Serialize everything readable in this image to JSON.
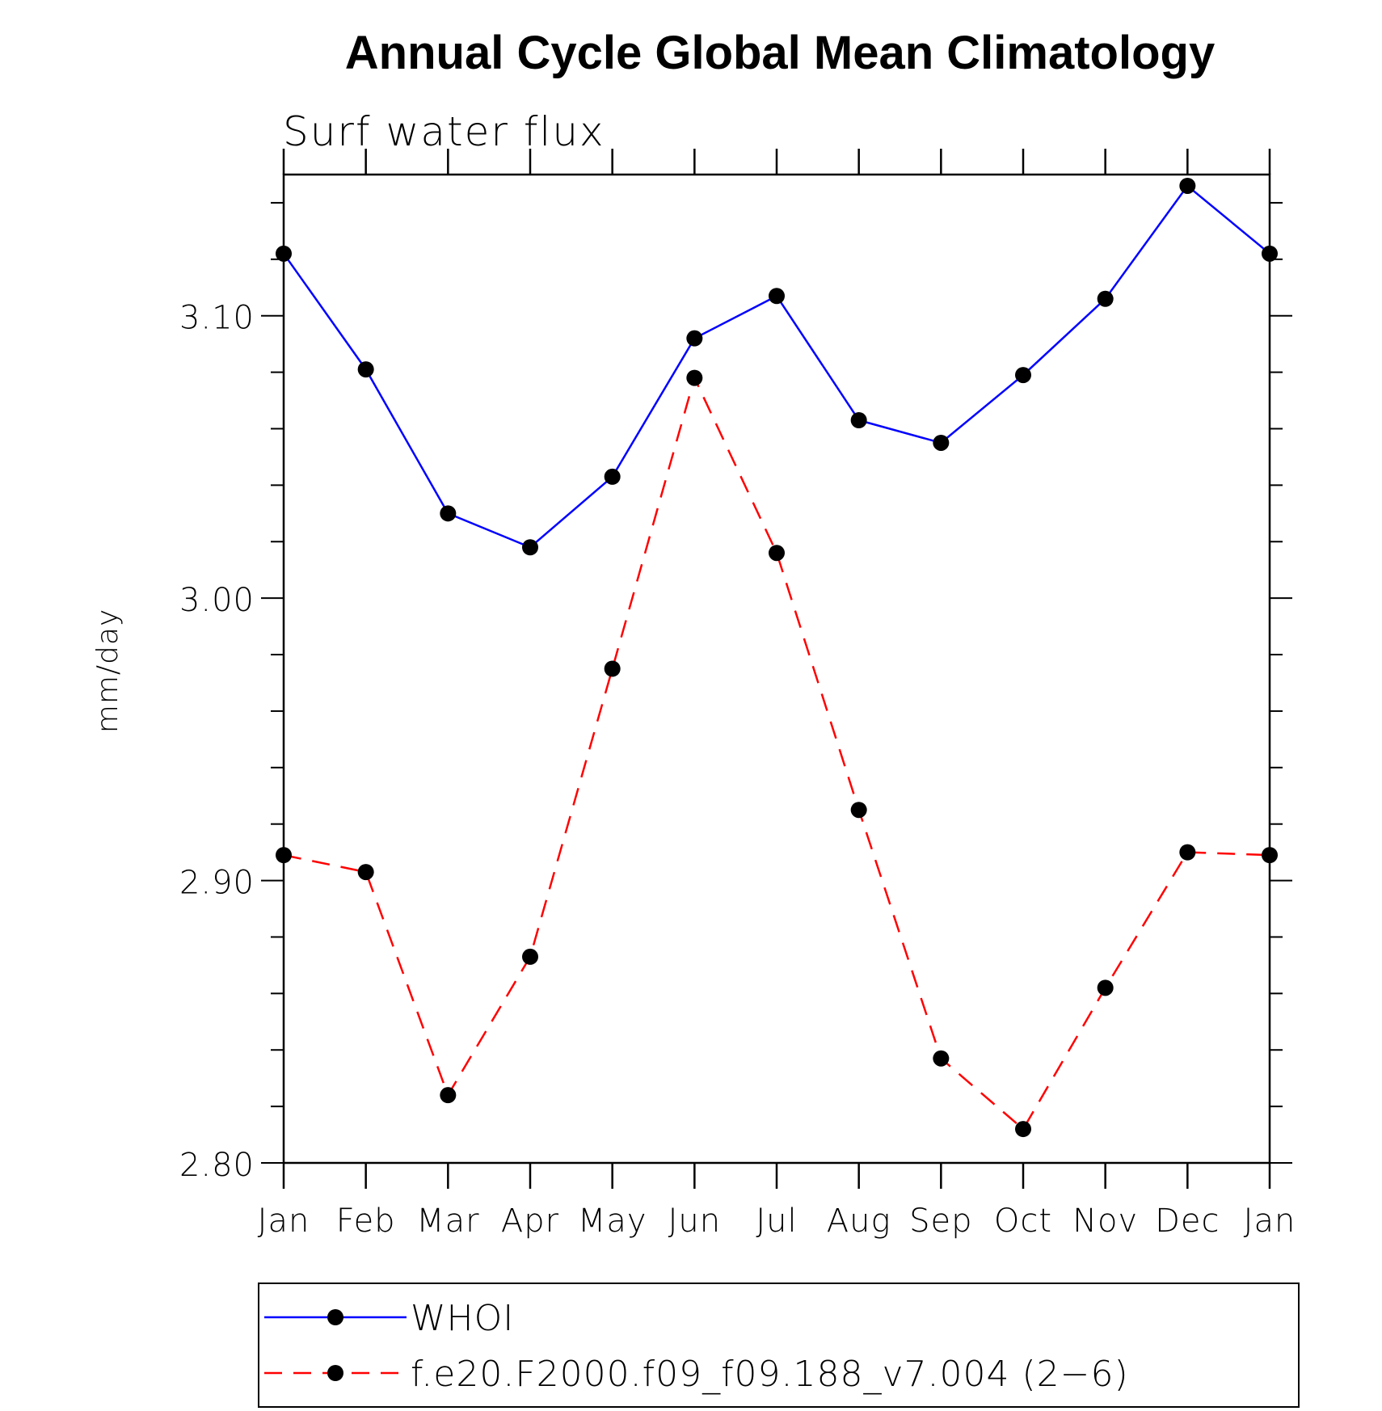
{
  "chart_data": {
    "type": "line",
    "title": "Annual Cycle Global Mean Climatology",
    "subtitle": "Surf water flux",
    "xlabel": "",
    "ylabel": "mm/day",
    "categories": [
      "Jan",
      "Feb",
      "Mar",
      "Apr",
      "May",
      "Jun",
      "Jul",
      "Aug",
      "Sep",
      "Oct",
      "Nov",
      "Dec",
      "Jan"
    ],
    "ylim": [
      2.8,
      3.15
    ],
    "yticks": [
      2.8,
      2.9,
      3.0,
      3.1
    ],
    "ytick_labels": [
      "2.80",
      "2.90",
      "3.00",
      "3.10"
    ],
    "legend_position": "bottom",
    "grid": false,
    "series": [
      {
        "name": "WHOI",
        "color": "#0000ff",
        "dash": "solid",
        "marker": "circle",
        "values": [
          3.122,
          3.081,
          3.03,
          3.018,
          3.043,
          3.092,
          3.107,
          3.063,
          3.055,
          3.079,
          3.106,
          3.146,
          3.122
        ]
      },
      {
        "name": "f.e20.F2000.f09_f09.188_v7.004 (2−6)",
        "color": "#ff0000",
        "dash": "dashed",
        "marker": "circle",
        "values": [
          2.909,
          2.903,
          2.824,
          2.873,
          2.975,
          3.078,
          3.016,
          2.925,
          2.837,
          2.812,
          2.862,
          2.91,
          2.909
        ]
      }
    ]
  }
}
